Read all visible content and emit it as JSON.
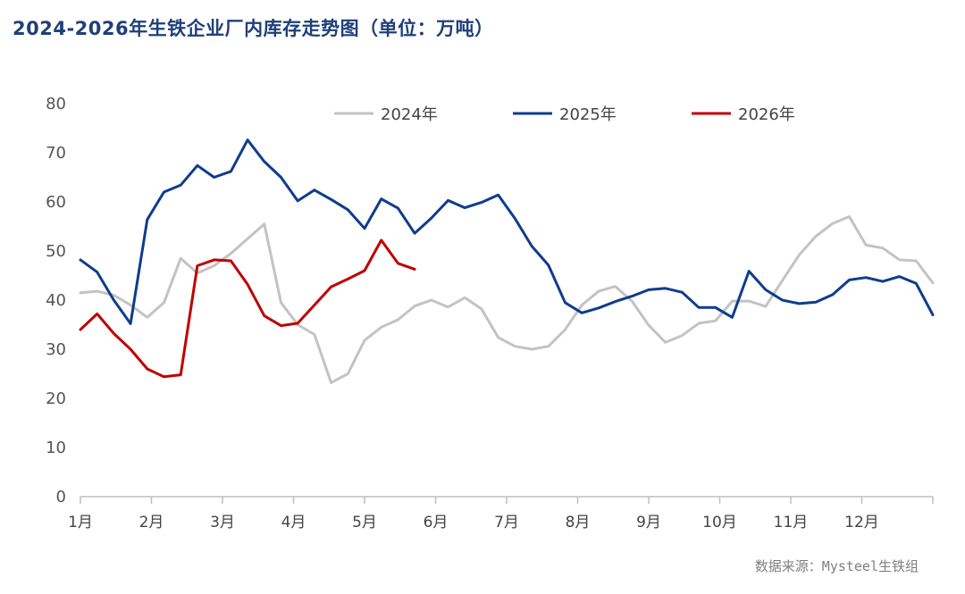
{
  "title": "2024-2026年生铁企业厂内库存走势图（单位：万吨）",
  "source": "数据来源：Mysteel生铁组",
  "chart_data": {
    "type": "line",
    "title": "2024-2026年生铁企业厂内库存走势图（单位：万吨）",
    "unit": "万吨",
    "xlabel": "",
    "ylabel": "",
    "ylim": [
      0,
      80
    ],
    "y_ticks": [
      0,
      10,
      20,
      30,
      40,
      50,
      60,
      70,
      80
    ],
    "x_tick_labels": [
      "1月",
      "2月",
      "3月",
      "4月",
      "5月",
      "6月",
      "7月",
      "8月",
      "9月",
      "10月",
      "11月",
      "12月"
    ],
    "x_unit": "week of year",
    "xlim": [
      1,
      52
    ],
    "grid": false,
    "legend_position": "top-center",
    "series": [
      {
        "name": "2024年",
        "color": "#c3c3c3",
        "x": [
          1,
          2,
          3,
          4,
          5,
          6,
          7,
          8,
          9,
          10,
          11,
          12,
          13,
          14,
          15,
          16,
          17,
          18,
          19,
          20,
          21,
          22,
          23,
          24,
          25,
          26,
          27,
          28,
          29,
          30,
          31,
          32,
          33,
          34,
          35,
          36,
          37,
          38,
          39,
          40,
          41,
          42,
          43,
          44,
          45,
          46,
          47,
          48,
          49,
          50,
          51,
          52
        ],
        "values": [
          41.5,
          41.8,
          41,
          39,
          36.5,
          39.5,
          48.5,
          45.5,
          47,
          49.5,
          52.5,
          55.5,
          39.5,
          35,
          33,
          23.2,
          25,
          31.8,
          34.5,
          36,
          38.8,
          40,
          38.6,
          40.5,
          38.2,
          32.4,
          30.6,
          30,
          30.6,
          34,
          39,
          41.8,
          42.8,
          39.8,
          34.9,
          31.4,
          32.8,
          35.3,
          35.8,
          39.8,
          39.8,
          38.7,
          44,
          49.2,
          53,
          55.6,
          57,
          51.2,
          50.6,
          48.2,
          48,
          43.5
        ]
      },
      {
        "name": "2025年",
        "color": "#0f3c8c",
        "x": [
          1,
          2,
          3,
          4,
          5,
          6,
          7,
          8,
          9,
          10,
          11,
          12,
          13,
          14,
          15,
          16,
          17,
          18,
          19,
          20,
          21,
          22,
          23,
          24,
          25,
          26,
          27,
          28,
          29,
          30,
          31,
          32,
          33,
          34,
          35,
          36,
          37,
          38,
          39,
          40,
          41,
          42,
          43,
          44,
          45,
          46,
          47,
          48,
          49,
          50,
          51,
          52
        ],
        "values": [
          48.2,
          45.7,
          40,
          35.2,
          56.4,
          62,
          63.4,
          67.4,
          65,
          66.2,
          72.6,
          68.2,
          65,
          60.2,
          62.4,
          60.5,
          58.4,
          54.6,
          60.6,
          58.7,
          53.6,
          56.7,
          60.3,
          58.8,
          59.9,
          61.4,
          56.6,
          51,
          47.1,
          39.5,
          37.4,
          38.4,
          39.7,
          40.8,
          42.1,
          42.4,
          41.6,
          38.5,
          38.5,
          36.5,
          45.9,
          42.1,
          40,
          39.3,
          39.6,
          41.1,
          44.1,
          44.6,
          43.8,
          44.8,
          43.4,
          37
        ]
      },
      {
        "name": "2026年",
        "color": "#c00000",
        "x": [
          1,
          2,
          3,
          4,
          5,
          6,
          7,
          8,
          9,
          10,
          11,
          12,
          13,
          14,
          15,
          16,
          17,
          18,
          19,
          20,
          21,
          22
        ],
        "values": [
          34,
          37.2,
          33.2,
          30,
          26,
          24.4,
          24.8,
          47,
          48.2,
          48,
          43.2,
          36.8,
          34.8,
          35.3,
          39,
          42.7,
          44.3,
          46,
          52.2,
          47.5,
          46.3,
          null
        ]
      }
    ]
  }
}
